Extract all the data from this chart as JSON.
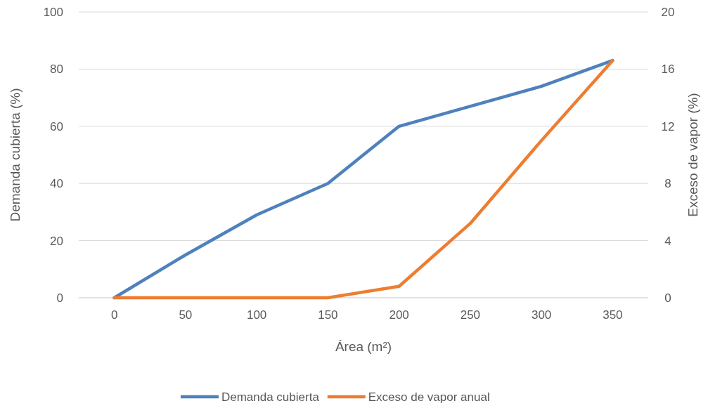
{
  "chart_data": {
    "type": "line",
    "categories": [
      "0",
      "50",
      "100",
      "150",
      "200",
      "250",
      "300",
      "350"
    ],
    "xlabel": "Área (m²)",
    "ylabel": "Demanda cubierta (%)",
    "y2label": "Exceso de vapor (%)",
    "ylim": [
      0,
      100
    ],
    "yticks": [
      0,
      20,
      40,
      60,
      80,
      100
    ],
    "y2lim": [
      0,
      20
    ],
    "y2ticks": [
      0,
      4,
      8,
      12,
      16,
      20
    ],
    "grid": "y",
    "legend": "bottom",
    "marker": "none",
    "line_style": "solid",
    "series": [
      {
        "name": "Demanda cubierta",
        "color": "#4e81bd",
        "values": [
          0,
          15,
          29,
          40,
          60,
          67,
          74,
          83
        ]
      },
      {
        "name": "Exceso de vapor anual",
        "color": "#ed7d31",
        "axis": "y2",
        "values": [
          0,
          0,
          0,
          0,
          0.8,
          5.2,
          11,
          16.6
        ]
      }
    ]
  }
}
